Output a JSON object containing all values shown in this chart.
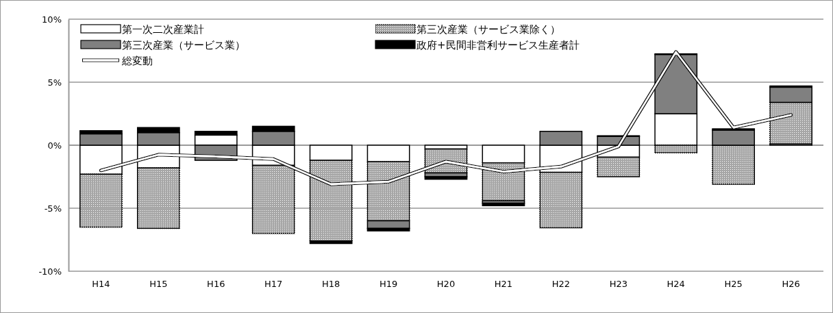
{
  "chart_data": {
    "type": "bar",
    "stacked": true,
    "categories": [
      "H14",
      "H15",
      "H16",
      "H17",
      "H18",
      "H19",
      "H20",
      "H21",
      "H22",
      "H23",
      "H24",
      "H25",
      "H26"
    ],
    "series": [
      {
        "name": "第一次二次産業計",
        "color": "#ffffff",
        "values": [
          -2.3,
          -1.8,
          0.8,
          -1.6,
          -1.2,
          -1.3,
          -0.3,
          -1.4,
          -2.15,
          -0.95,
          2.5,
          0,
          0.1
        ]
      },
      {
        "name": "第三次産業（サービス業除く）",
        "color": "#a6a6a6",
        "values": [
          -4.2,
          -4.8,
          0,
          -5.4,
          -6.4,
          -4.7,
          -1.9,
          -3.0,
          -4.4,
          -1.55,
          -0.6,
          -3.1,
          3.3
        ]
      },
      {
        "name": "第三次産業（サービス業）",
        "color": "#808080",
        "values": [
          0.9,
          1.0,
          -1.2,
          1.1,
          0,
          -0.6,
          -0.3,
          -0.2,
          1.1,
          0.7,
          4.7,
          1.2,
          1.2
        ]
      },
      {
        "name": "政府+民間非営利サービス生産者計",
        "color": "#000000",
        "values": [
          0.25,
          0.4,
          0.3,
          0.4,
          -0.2,
          -0.2,
          -0.2,
          -0.2,
          0,
          0.05,
          0.05,
          0.1,
          0.1
        ]
      },
      {
        "name": "総変動",
        "type": "line",
        "color": "#000000",
        "values": [
          -2.0,
          -0.75,
          -0.9,
          -1.1,
          -3.1,
          -2.9,
          -1.3,
          -2.1,
          -1.7,
          -0.1,
          7.4,
          1.4,
          2.4
        ]
      }
    ],
    "ylim": [
      -10,
      10
    ],
    "yticks": [
      {
        "value": -10,
        "label": "-10%"
      },
      {
        "value": -5,
        "label": "-5%"
      },
      {
        "value": 0,
        "label": "0%"
      },
      {
        "value": 5,
        "label": "5%"
      },
      {
        "value": 10,
        "label": "10%"
      }
    ],
    "grid": "y",
    "legend": "top left"
  }
}
